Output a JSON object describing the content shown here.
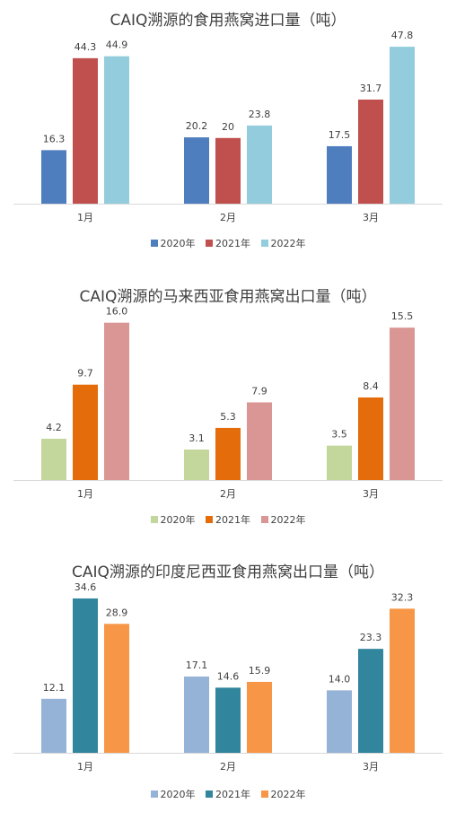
{
  "chart_data": [
    {
      "type": "bar",
      "title": "CAIQ溯源的食用燕窝进口量（吨）",
      "categories": [
        "1月",
        "2月",
        "3月"
      ],
      "series": [
        {
          "name": "2020年",
          "values": [
            16.3,
            20.2,
            17.5
          ],
          "labels": [
            "16.3",
            "20.2",
            "17.5"
          ],
          "color": "#4f7ebf"
        },
        {
          "name": "2021年",
          "values": [
            44.3,
            20,
            31.7
          ],
          "labels": [
            "44.3",
            "20",
            "31.7"
          ],
          "color": "#c0504d"
        },
        {
          "name": "2022年",
          "values": [
            44.9,
            23.8,
            47.8
          ],
          "labels": [
            "44.9",
            "23.8",
            "47.8"
          ],
          "color": "#93cddd"
        }
      ],
      "ylim": [
        0,
        50
      ],
      "grid": false,
      "legend": "bottom"
    },
    {
      "type": "bar",
      "title": "CAIQ溯源的马来西亚食用燕窝出口量（吨）",
      "categories": [
        "1月",
        "2月",
        "3月"
      ],
      "series": [
        {
          "name": "2020年",
          "values": [
            4.2,
            3.1,
            3.5
          ],
          "labels": [
            "4.2",
            "3.1",
            "3.5"
          ],
          "color": "#c3d69b"
        },
        {
          "name": "2021年",
          "values": [
            9.7,
            5.3,
            8.4
          ],
          "labels": [
            "9.7",
            "5.3",
            "8.4"
          ],
          "color": "#e46c0a"
        },
        {
          "name": "2022年",
          "values": [
            16.0,
            7.9,
            15.5
          ],
          "labels": [
            "16.0",
            "7.9",
            "15.5"
          ],
          "color": "#d99694"
        }
      ],
      "ylim": [
        0,
        16.7
      ],
      "grid": false,
      "legend": "bottom"
    },
    {
      "type": "bar",
      "title": "CAIQ溯源的印度尼西亚食用燕窝出口量（吨）",
      "categories": [
        "1月",
        "2月",
        "3月"
      ],
      "series": [
        {
          "name": "2020年",
          "values": [
            12.1,
            17.1,
            14.0
          ],
          "labels": [
            "12.1",
            "17.1",
            "14.0"
          ],
          "color": "#95b3d7"
        },
        {
          "name": "2021年",
          "values": [
            34.6,
            14.6,
            23.3
          ],
          "labels": [
            "34.6",
            "14.6",
            "23.3"
          ],
          "color": "#31859c"
        },
        {
          "name": "2022年",
          "values": [
            28.9,
            15.9,
            32.3
          ],
          "labels": [
            "28.9",
            "15.9",
            "32.3"
          ],
          "color": "#f79646"
        }
      ],
      "ylim": [
        0,
        36.2
      ],
      "grid": false,
      "legend": "bottom"
    }
  ]
}
